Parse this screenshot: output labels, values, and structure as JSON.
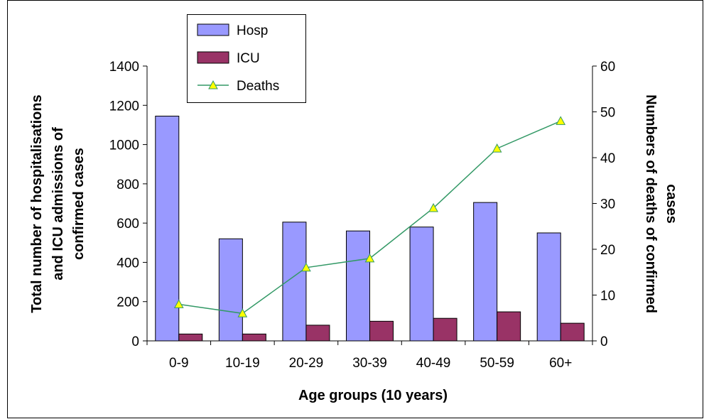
{
  "chart_data": {
    "type": "bar",
    "categories": [
      "0-9",
      "10-19",
      "20-29",
      "30-39",
      "40-49",
      "50-59",
      "60+"
    ],
    "series": [
      {
        "name": "Hosp",
        "kind": "bar",
        "axis": "left",
        "color": "#9999FF",
        "values": [
          1145,
          520,
          605,
          560,
          580,
          705,
          550
        ]
      },
      {
        "name": "ICU",
        "kind": "bar",
        "axis": "left",
        "color": "#993366",
        "values": [
          35,
          35,
          80,
          100,
          115,
          148,
          90
        ]
      },
      {
        "name": "Deaths",
        "kind": "line",
        "axis": "right",
        "color": "#339966",
        "marker_fill": "#FFFF00",
        "values": [
          8,
          6,
          16,
          18,
          29,
          42,
          48
        ]
      }
    ],
    "xlabel": "Age groups (10 years)",
    "ylabel_left": [
      "Total number of hospitalisations",
      "and ICU admissions of",
      "confirmed cases"
    ],
    "ylabel_right": [
      "Numbers of deaths of confirmed",
      "cases"
    ],
    "ylim_left": [
      0,
      1400
    ],
    "ylim_right": [
      0,
      60
    ],
    "yticks_left": [
      "0",
      "200",
      "400",
      "600",
      "800",
      "1000",
      "1200",
      "1400"
    ],
    "yticks_right": [
      "0",
      "10",
      "20",
      "30",
      "40",
      "50",
      "60"
    ],
    "grid": false,
    "legend": {
      "placement": "top-left",
      "entries": [
        "Hosp",
        "ICU",
        "Deaths"
      ]
    }
  }
}
